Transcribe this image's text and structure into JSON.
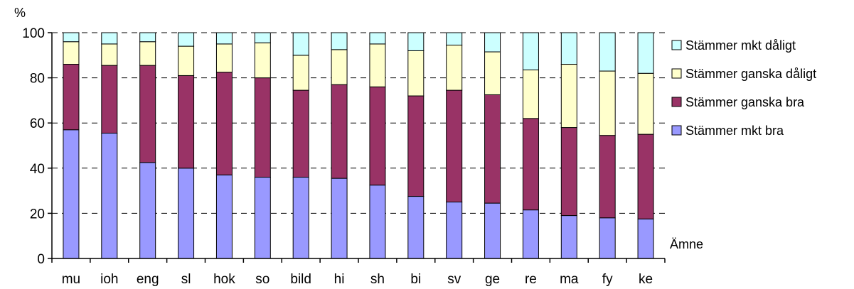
{
  "chart_data": {
    "type": "bar",
    "stacked": true,
    "title": "",
    "ylabel": "%",
    "xlabel": "Ämne",
    "ylim": [
      0,
      100
    ],
    "yticks": [
      0,
      20,
      40,
      60,
      80,
      100
    ],
    "grid": "horizontal dashed",
    "legend_position": "right",
    "categories": [
      "mu",
      "ioh",
      "eng",
      "sl",
      "hok",
      "so",
      "bild",
      "hi",
      "sh",
      "bi",
      "sv",
      "ge",
      "re",
      "ma",
      "fy",
      "ke"
    ],
    "series": [
      {
        "name": "Stämmer mkt bra",
        "color": "#9999FF",
        "values": [
          57,
          55.5,
          42.5,
          40,
          37,
          36,
          36,
          35.5,
          32.5,
          27.5,
          25,
          24.5,
          21.5,
          19,
          18,
          17.5
        ]
      },
      {
        "name": "Stämmer ganska bra",
        "color": "#993366",
        "values": [
          29,
          30,
          43,
          41,
          45.5,
          44,
          38.5,
          41.5,
          43.5,
          44.5,
          49.5,
          48,
          40.5,
          39,
          36.5,
          37.5
        ]
      },
      {
        "name": "Stämmer ganska dåligt",
        "color": "#FFFFCC",
        "values": [
          10,
          9.5,
          10.5,
          13,
          12.5,
          15.5,
          15.5,
          15.5,
          19,
          20,
          20,
          19,
          21.5,
          28,
          28.5,
          27
        ]
      },
      {
        "name": "Stämmer mkt dåligt",
        "color": "#CCFFFF",
        "values": [
          4,
          5,
          4,
          6,
          5,
          4.5,
          10,
          7.5,
          5,
          8,
          5.5,
          8.5,
          16.5,
          14,
          17,
          18
        ]
      }
    ],
    "legend_order": [
      "Stämmer mkt dåligt",
      "Stämmer ganska dåligt",
      "Stämmer ganska bra",
      "Stämmer mkt bra"
    ]
  }
}
